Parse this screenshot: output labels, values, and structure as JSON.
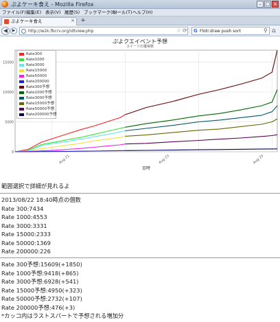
{
  "window": {
    "title": "ぷよケーキ食え - Mozilla Firefox",
    "min_glyph": "–",
    "max_glyph": "□",
    "close_glyph": "×"
  },
  "menu": [
    "ファイル(F)",
    "編集(E)",
    "表示(V)",
    "履歴(S)",
    "ブックマーク(B)",
    "ツール(T)",
    "ヘルプ(H)"
  ],
  "tab": {
    "label": "ぷよケーキ食え",
    "close": "×",
    "new_tab": "+"
  },
  "nav": {
    "back": "◀",
    "forward": "▶",
    "url": "http://w2k.fbcrv.org/idtview.php",
    "star": "☆",
    "reload": "⟳",
    "search_engine": "G",
    "search_text": "Flotr.draw push sort",
    "search_go": "⚲",
    "home": "⌂"
  },
  "chart_data": {
    "type": "line",
    "title": "ぷよクエイベント予想",
    "subtitle": "スイーツの獲得数",
    "xlabel": "日時",
    "ylabel": "",
    "x_ticks": [
      "Aug 21",
      "Aug 23",
      "Aug 25"
    ],
    "y_ticks": [
      0,
      5000,
      10000,
      15000
    ],
    "ylim": [
      0,
      17000
    ],
    "xlim": [
      0,
      10
    ],
    "grid": true,
    "legend_position": "top-left",
    "series": [
      {
        "name": "Rate300",
        "color": "#ff2020",
        "kind": "actual",
        "x": [
          0,
          0.5,
          1,
          1.5,
          2,
          2.5,
          3,
          3.5,
          4.0,
          4.2
        ],
        "y": [
          0,
          400,
          1600,
          2300,
          3000,
          3700,
          4300,
          5000,
          5700,
          6200
        ]
      },
      {
        "name": "Rate1000",
        "color": "#38e038",
        "kind": "actual",
        "x": [
          0,
          0.5,
          1,
          1.5,
          2,
          2.5,
          3,
          3.5,
          4.0,
          4.2
        ],
        "y": [
          0,
          250,
          1200,
          1600,
          2000,
          2400,
          2900,
          3400,
          3900,
          4100
        ]
      },
      {
        "name": "Rate3000",
        "color": "#66e8ee",
        "kind": "actual",
        "x": [
          0,
          0.5,
          1,
          1.5,
          2,
          2.5,
          3,
          3.5,
          4.0,
          4.2
        ],
        "y": [
          0,
          150,
          1000,
          1400,
          1700,
          2100,
          2500,
          2900,
          3300,
          3500
        ]
      },
      {
        "name": "Rate15000",
        "color": "#f0e040",
        "kind": "actual",
        "x": [
          0,
          0.5,
          1,
          1.5,
          2,
          2.5,
          3,
          3.5,
          4.0,
          4.2
        ],
        "y": [
          0,
          80,
          500,
          800,
          1100,
          1400,
          1800,
          2100,
          2400,
          2600
        ]
      },
      {
        "name": "Rate50000",
        "color": "#ee22ee",
        "kind": "actual",
        "x": [
          0,
          0.5,
          1,
          1.5,
          2,
          2.5,
          3,
          3.5,
          4.0,
          4.2
        ],
        "y": [
          0,
          40,
          150,
          250,
          400,
          550,
          750,
          950,
          1150,
          1300
        ]
      },
      {
        "name": "Rate200000",
        "color": "#2222cc",
        "kind": "actual",
        "x": [
          0,
          0.5,
          1,
          1.5,
          2,
          2.5,
          3,
          3.5,
          4.0,
          4.2
        ],
        "y": [
          0,
          10,
          30,
          50,
          70,
          90,
          120,
          150,
          180,
          200
        ]
      },
      {
        "name": "Rate300予想",
        "color": "#660000",
        "kind": "forecast",
        "x": [
          4.2,
          5,
          6,
          7,
          7.8,
          8.6,
          9.4,
          9.8,
          10
        ],
        "y": [
          6200,
          7400,
          8400,
          9600,
          10400,
          11300,
          12300,
          13300,
          17000
        ]
      },
      {
        "name": "Rate1000予想",
        "color": "#006600",
        "kind": "forecast",
        "x": [
          4.2,
          5,
          6,
          7,
          7.8,
          8.6,
          9.4,
          9.8,
          10
        ],
        "y": [
          4100,
          4700,
          5300,
          6000,
          6400,
          7000,
          7700,
          8300,
          10400
        ]
      },
      {
        "name": "Rate3000予想",
        "color": "#005566",
        "kind": "forecast",
        "x": [
          4.2,
          5,
          6,
          7,
          7.8,
          8.6,
          9.4,
          9.8,
          10
        ],
        "y": [
          3500,
          3900,
          4400,
          5000,
          5300,
          5700,
          6100,
          6700,
          7700
        ]
      },
      {
        "name": "Rate15000予想",
        "color": "#666600",
        "kind": "forecast",
        "x": [
          4.2,
          5,
          6,
          7,
          7.8,
          8.6,
          9.4,
          9.8,
          10
        ],
        "y": [
          2600,
          2800,
          3200,
          3600,
          3800,
          4200,
          4600,
          5000,
          5500
        ]
      },
      {
        "name": "Rate50000予想",
        "color": "#550055",
        "kind": "forecast",
        "x": [
          4.2,
          5,
          6,
          7,
          7.8,
          8.6,
          9.4,
          9.8,
          10
        ],
        "y": [
          1300,
          1400,
          1650,
          1900,
          2100,
          2300,
          2550,
          2700,
          2850
        ]
      },
      {
        "name": "Rate200000予想",
        "color": "#000055",
        "kind": "forecast",
        "x": [
          4.2,
          5,
          6,
          7,
          7.8,
          8.6,
          9.4,
          9.8,
          10
        ],
        "y": [
          200,
          230,
          280,
          330,
          370,
          410,
          450,
          470,
          480
        ]
      }
    ]
  },
  "content": {
    "hint": "範囲選択で詳細が見れるよ",
    "snapshot": [
      "2013/08/22 18:40時点の個数",
      "Rate 300:7434",
      "Rate 1000:4553",
      "Rate 3000:3331",
      "Rate 15000:2333",
      "Rate 50000:1369",
      "Rate 200000:226"
    ],
    "forecast": [
      "Rate 300予想:15609(+1850)",
      "Rate 1000予想:9418(+865)",
      "Rate 3000予想:6928(+541)",
      "Rate 15000予想:4950(+323)",
      "Rate 50000予想:2732(+107)",
      "Rate 200000予想:476(+3)",
      "*カッコ内はラストスパートで予想される増加分"
    ]
  }
}
